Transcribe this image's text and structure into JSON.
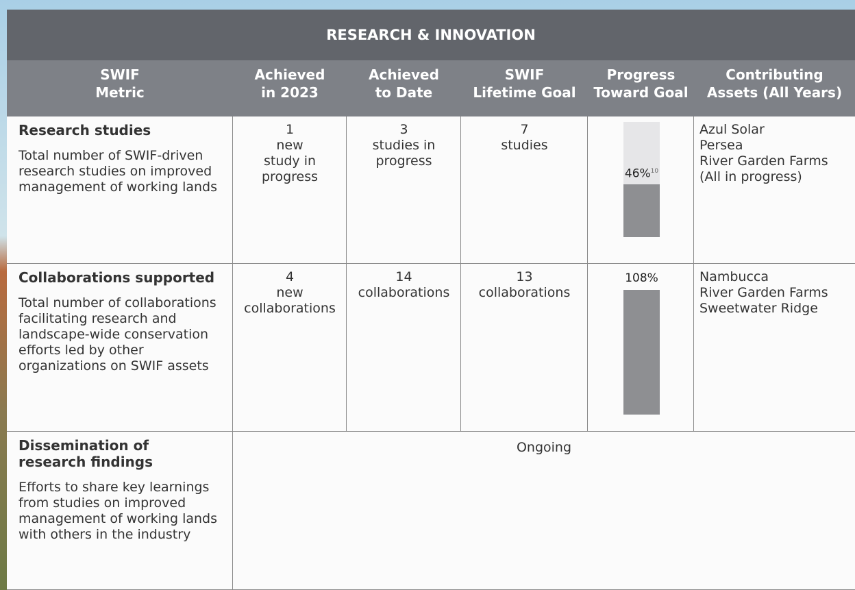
{
  "header": {
    "title": "RESEARCH & INNOVATION"
  },
  "columns": [
    [
      "SWIF",
      "Metric"
    ],
    [
      "Achieved",
      "in 2023"
    ],
    [
      "Achieved",
      "to Date"
    ],
    [
      "SWIF",
      "Lifetime Goal"
    ],
    [
      "Progress",
      "Toward Goal"
    ],
    [
      "Contributing",
      "Assets (All Years)"
    ]
  ],
  "rows": [
    {
      "metric": "Research studies",
      "description": "Total number of SWIF-driven research studies on improved management of working lands",
      "achieved_2023": [
        "1",
        "new",
        "study in",
        "progress"
      ],
      "achieved_to_date": [
        "3",
        "studies in",
        "progress"
      ],
      "lifetime_goal": [
        "7",
        "studies"
      ],
      "progress": {
        "value": 46,
        "label": "46%"
      },
      "footnote": "10",
      "assets": [
        "Azul Solar",
        "Persea",
        "River Garden Farms",
        "(All in progress)"
      ]
    },
    {
      "metric": "Collaborations supported",
      "description": "Total number of collaborations facilitating research and landscape-wide conservation efforts led by other organizations on SWIF assets",
      "achieved_2023": [
        "4",
        "new",
        "collaborations"
      ],
      "achieved_to_date": [
        "14",
        "collaborations"
      ],
      "lifetime_goal": [
        "13",
        "collaborations"
      ],
      "progress": {
        "value": 108,
        "label": "108%"
      },
      "assets": [
        "Nambucca",
        "River Garden Farms",
        "Sweetwater Ridge"
      ]
    },
    {
      "metric": "Dissemination of research findings",
      "description": "Efforts to share key learnings from studies on improved management of working lands with others in the industry",
      "result": "Ongoing"
    }
  ]
}
